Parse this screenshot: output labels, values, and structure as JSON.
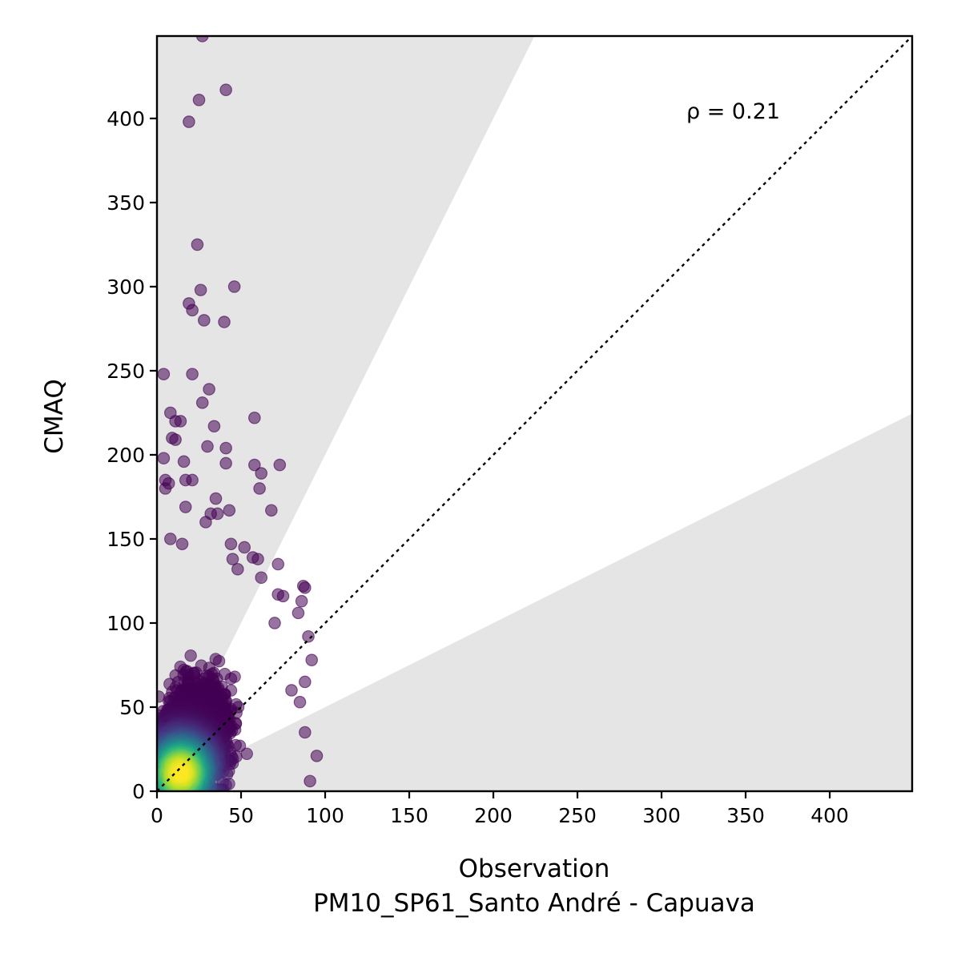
{
  "chart_data": {
    "type": "scatter",
    "xlabel": "Observation",
    "xlabel_sub": "PM10_SP61_Santo André - Capuava",
    "ylabel": "CMAQ",
    "xlim": [
      0,
      449
    ],
    "ylim": [
      0,
      449
    ],
    "xticks": [
      0,
      50,
      100,
      150,
      200,
      250,
      300,
      350,
      400
    ],
    "yticks": [
      0,
      50,
      100,
      150,
      200,
      250,
      300,
      350,
      400
    ],
    "annotation": "ρ = 0.21",
    "reference_line": "1:1 dotted",
    "factor_of_two_region": "shaded light gray outside 0.5x to 2x band",
    "point_color_scale": "viridis (point density)",
    "colors": {
      "shade": "#e5e5e5",
      "low_density": "#440154",
      "high_density": "#fde725"
    },
    "outliers": [
      [
        27,
        449
      ],
      [
        41,
        417
      ],
      [
        25,
        411
      ],
      [
        19,
        398
      ],
      [
        24,
        325
      ],
      [
        46,
        300
      ],
      [
        26,
        298
      ],
      [
        19,
        290
      ],
      [
        21,
        286
      ],
      [
        28,
        280
      ],
      [
        40,
        279
      ],
      [
        4,
        248
      ],
      [
        21,
        248
      ],
      [
        31,
        239
      ],
      [
        27,
        231
      ],
      [
        8,
        225
      ],
      [
        58,
        222
      ],
      [
        11,
        220
      ],
      [
        14,
        220
      ],
      [
        34,
        217
      ],
      [
        4,
        198
      ],
      [
        9,
        210
      ],
      [
        11,
        209
      ],
      [
        16,
        196
      ],
      [
        30,
        205
      ],
      [
        41,
        204
      ],
      [
        41,
        195
      ],
      [
        58,
        194
      ],
      [
        73,
        194
      ],
      [
        62,
        189
      ],
      [
        61,
        180
      ],
      [
        5,
        185
      ],
      [
        7,
        183
      ],
      [
        17,
        185
      ],
      [
        21,
        185
      ],
      [
        5,
        180
      ],
      [
        35,
        174
      ],
      [
        17,
        169
      ],
      [
        43,
        167
      ],
      [
        68,
        167
      ],
      [
        32,
        165
      ],
      [
        36,
        165
      ],
      [
        29,
        160
      ],
      [
        8,
        150
      ],
      [
        15,
        147
      ],
      [
        44,
        147
      ],
      [
        52,
        145
      ],
      [
        57,
        139
      ],
      [
        60,
        138
      ],
      [
        45,
        138
      ],
      [
        72,
        135
      ],
      [
        48,
        132
      ],
      [
        62,
        127
      ],
      [
        87,
        122
      ],
      [
        88,
        121
      ],
      [
        72,
        117
      ],
      [
        75,
        116
      ],
      [
        86,
        113
      ],
      [
        84,
        106
      ],
      [
        70,
        100
      ],
      [
        90,
        92
      ],
      [
        92,
        78
      ],
      [
        88,
        65
      ],
      [
        95,
        21
      ],
      [
        91,
        6
      ],
      [
        88,
        35
      ],
      [
        85,
        53
      ],
      [
        80,
        60
      ]
    ]
  }
}
